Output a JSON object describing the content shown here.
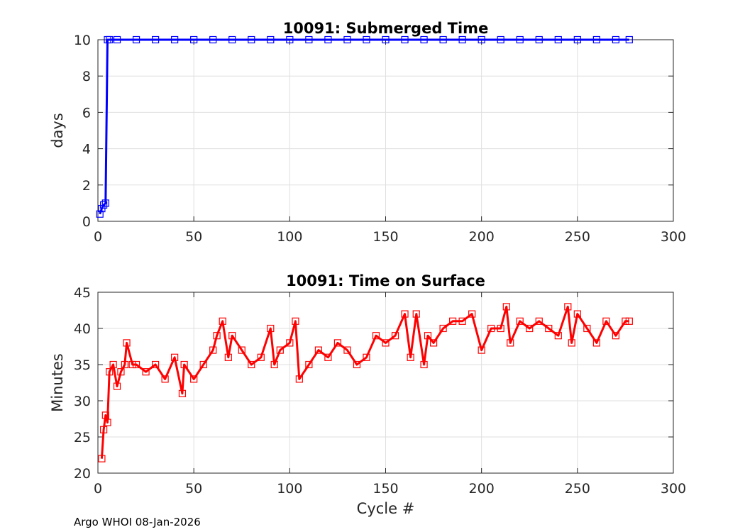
{
  "chart_data": [
    {
      "type": "line",
      "title": "10091: Submerged Time",
      "xlabel": "",
      "ylabel": "days",
      "xlim": [
        0,
        300
      ],
      "ylim": [
        0,
        10
      ],
      "xticks": [
        0,
        50,
        100,
        150,
        200,
        250,
        300
      ],
      "yticks": [
        0,
        2,
        4,
        6,
        8,
        10
      ],
      "grid": true,
      "marker": "square",
      "color": "#0000ff",
      "series": [
        {
          "name": "Submerged Time",
          "x": [
            1,
            2,
            3,
            4,
            5,
            6,
            10,
            20,
            30,
            40,
            50,
            60,
            70,
            80,
            90,
            100,
            110,
            120,
            130,
            140,
            150,
            160,
            170,
            180,
            190,
            200,
            210,
            220,
            230,
            240,
            250,
            260,
            270,
            277
          ],
          "y": [
            0.4,
            0.7,
            0.9,
            1.0,
            10.0,
            10.0,
            10.0,
            10.0,
            10.0,
            10.0,
            10.0,
            10.0,
            10.0,
            10.0,
            10.0,
            10.0,
            10.0,
            10.0,
            10.0,
            10.0,
            10.0,
            10.0,
            10.0,
            10.0,
            10.0,
            10.0,
            10.0,
            10.0,
            10.0,
            10.0,
            10.0,
            10.0,
            10.0,
            10.0
          ]
        }
      ]
    },
    {
      "type": "line",
      "title": "10091: Time on Surface",
      "xlabel": "Cycle #",
      "ylabel": "Minutes",
      "xlim": [
        0,
        300
      ],
      "ylim": [
        20,
        45
      ],
      "xticks": [
        0,
        50,
        100,
        150,
        200,
        250,
        300
      ],
      "yticks": [
        20,
        25,
        30,
        35,
        40,
        45
      ],
      "grid": true,
      "marker": "square",
      "color": "#ff0000",
      "series": [
        {
          "name": "Time on Surface",
          "x": [
            2,
            3,
            4,
            5,
            6,
            8,
            10,
            12,
            14,
            15,
            18,
            20,
            25,
            30,
            35,
            40,
            44,
            45,
            50,
            55,
            60,
            62,
            65,
            68,
            70,
            75,
            80,
            85,
            90,
            92,
            95,
            100,
            103,
            105,
            110,
            115,
            120,
            125,
            130,
            135,
            140,
            145,
            150,
            155,
            160,
            163,
            166,
            170,
            172,
            175,
            180,
            185,
            190,
            195,
            200,
            205,
            210,
            213,
            215,
            220,
            225,
            230,
            235,
            240,
            245,
            247,
            250,
            255,
            260,
            265,
            270,
            275,
            277
          ],
          "y": [
            22,
            26,
            28,
            27,
            34,
            35,
            32,
            34,
            35,
            38,
            35,
            35,
            34,
            35,
            33,
            36,
            31,
            35,
            33,
            35,
            37,
            39,
            41,
            36,
            39,
            37,
            35,
            36,
            40,
            35,
            37,
            38,
            41,
            33,
            35,
            37,
            36,
            38,
            37,
            35,
            36,
            39,
            38,
            39,
            42,
            36,
            42,
            35,
            39,
            38,
            40,
            41,
            41,
            42,
            37,
            40,
            40,
            43,
            38,
            41,
            40,
            41,
            40,
            39,
            43,
            38,
            42,
            40,
            38,
            41,
            39,
            41,
            41
          ]
        }
      ]
    }
  ],
  "footer": "Argo WHOI 08-Jan-2026"
}
